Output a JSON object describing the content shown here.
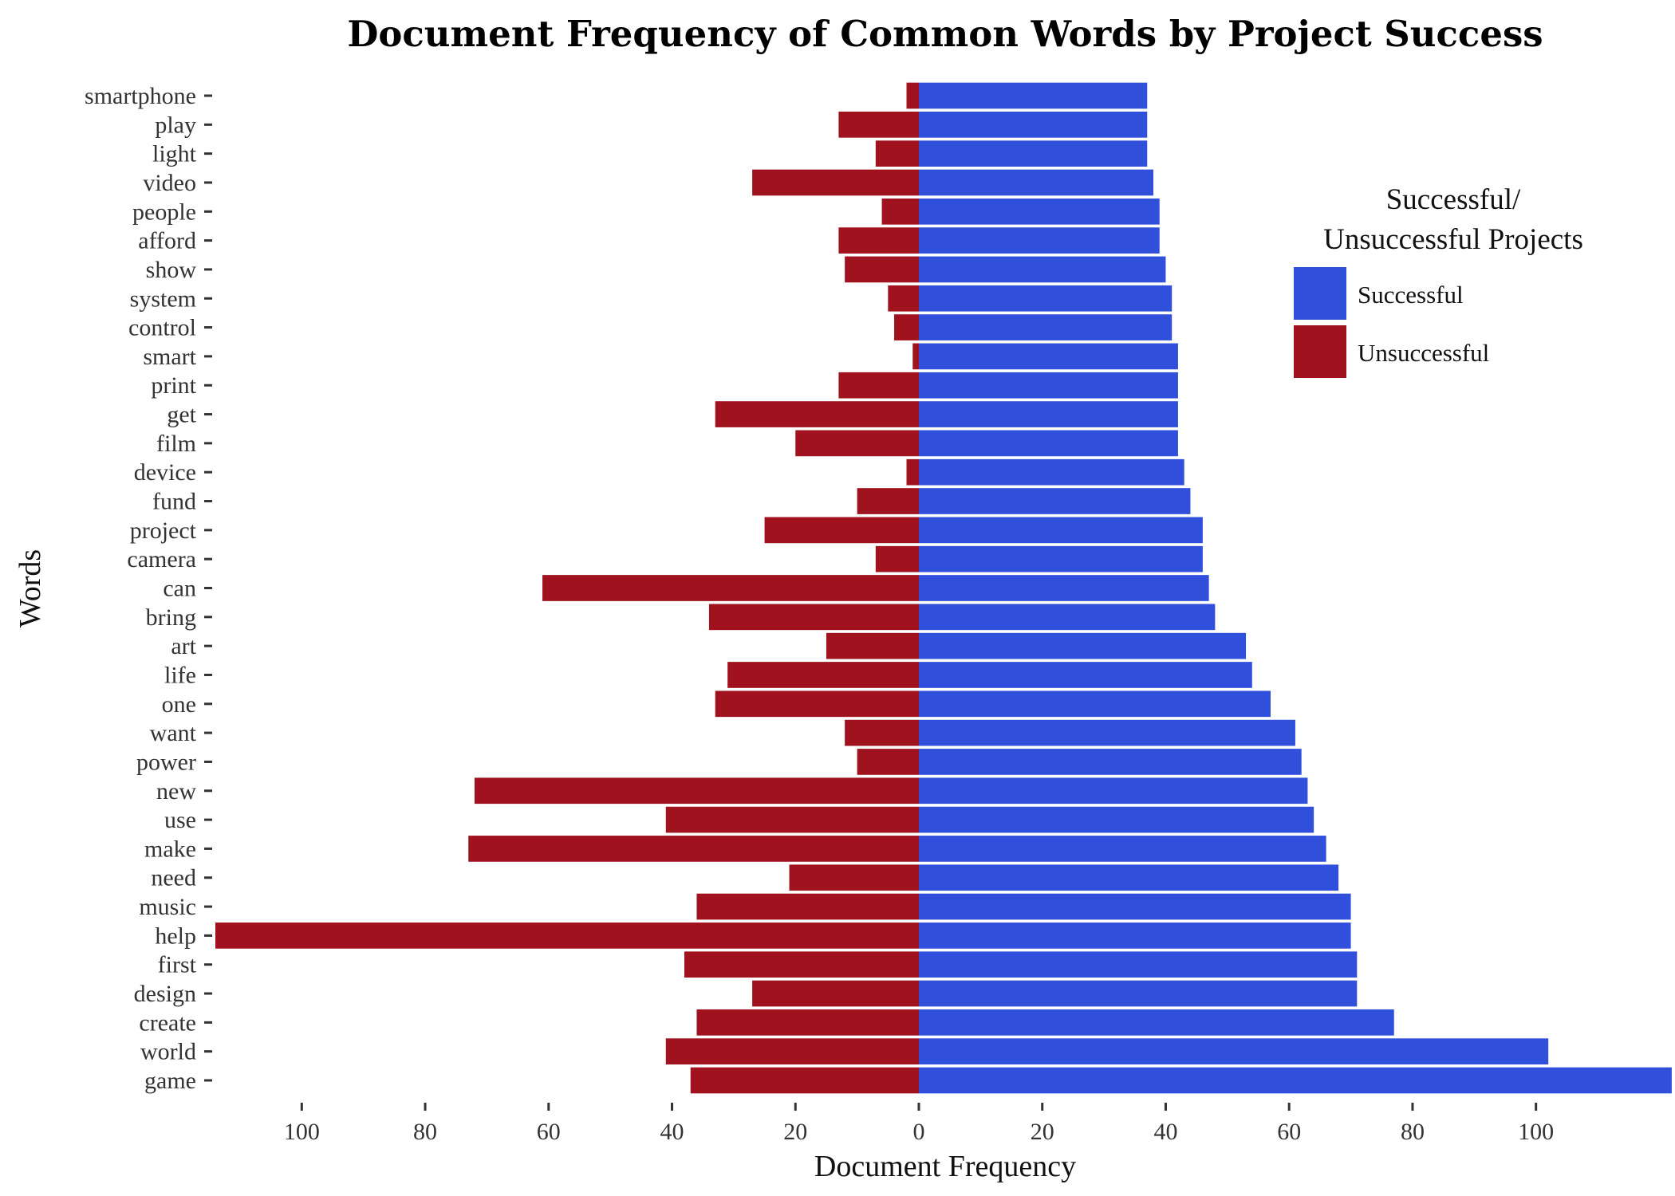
{
  "chart_data": {
    "type": "bar",
    "orientation": "horizontal-diverging",
    "title": "Document Frequency of Common Words by Project Success",
    "xlabel": "Document Frequency",
    "ylabel": "Words",
    "xlim": [
      -114,
      122
    ],
    "x_ticks": [
      -100,
      -80,
      -60,
      -40,
      -20,
      0,
      20,
      40,
      60,
      80,
      100
    ],
    "x_tick_labels": [
      "100",
      "80",
      "60",
      "40",
      "20",
      "0",
      "20",
      "40",
      "60",
      "80",
      "100"
    ],
    "grid": false,
    "legend": {
      "title_lines": [
        "Successful/",
        "Unsuccessful Projects"
      ],
      "placement": "top-right"
    },
    "categories": [
      "smartphone",
      "play",
      "light",
      "video",
      "people",
      "afford",
      "show",
      "system",
      "control",
      "smart",
      "print",
      "get",
      "film",
      "device",
      "fund",
      "project",
      "camera",
      "can",
      "bring",
      "art",
      "life",
      "one",
      "want",
      "power",
      "new",
      "use",
      "make",
      "need",
      "music",
      "help",
      "first",
      "design",
      "create",
      "world",
      "game"
    ],
    "series": [
      {
        "name": "Successful",
        "color": "#3050DC",
        "values": [
          37,
          37,
          37,
          38,
          39,
          39,
          40,
          41,
          41,
          42,
          42,
          42,
          42,
          43,
          44,
          46,
          46,
          47,
          48,
          53,
          54,
          57,
          61,
          62,
          63,
          64,
          66,
          68,
          70,
          70,
          71,
          71,
          77,
          102,
          122
        ]
      },
      {
        "name": "Unsuccessful",
        "color": "#A0121E",
        "values": [
          2,
          13,
          7,
          27,
          6,
          13,
          12,
          5,
          4,
          1,
          13,
          33,
          20,
          2,
          10,
          25,
          7,
          61,
          34,
          15,
          31,
          33,
          12,
          10,
          72,
          41,
          73,
          21,
          36,
          114,
          38,
          27,
          36,
          41,
          37
        ]
      }
    ]
  }
}
